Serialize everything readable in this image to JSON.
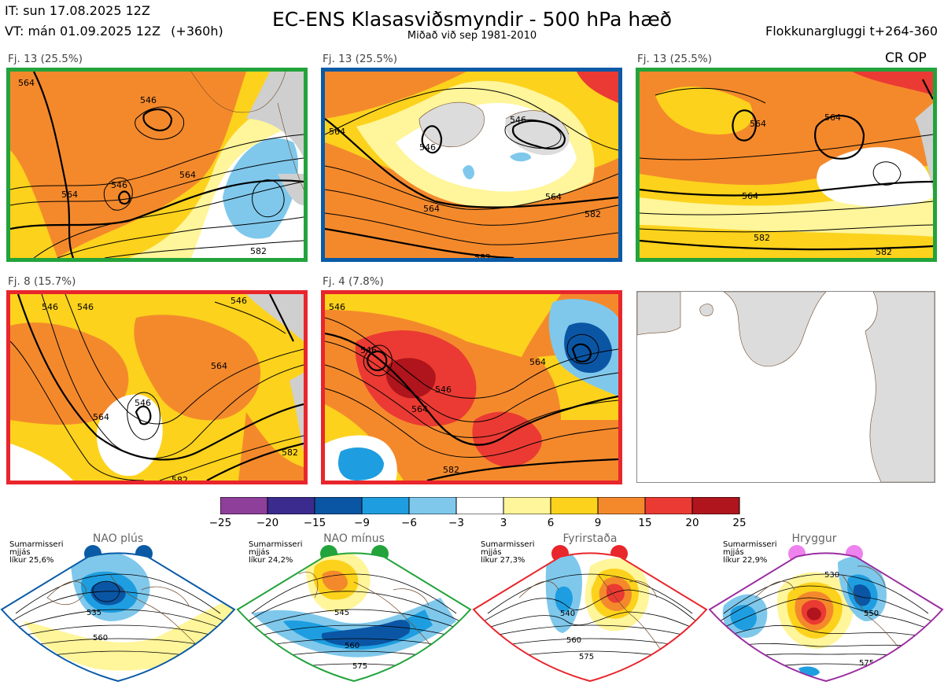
{
  "header": {
    "it": "IT: sun 17.08.2025 12Z",
    "vt": "VT: mán 01.09.2025 12Z",
    "vt_offset": "(+360h)",
    "title": "EC-ENS Klasasviðsmyndir - 500 hPa hæð",
    "subtitle": "Miðað við sep 1981-2010",
    "window": "Flokkunargluggi t+264-360",
    "cr_op": "CR OP"
  },
  "panels": [
    {
      "label": "Fj. 13 (25.5%)",
      "border": "#22a33b",
      "contours": [
        "564",
        "546",
        "546",
        "564",
        "564",
        "582"
      ]
    },
    {
      "label": "Fj. 13 (25.5%)",
      "border": "#0a5aa6",
      "contours": [
        "546",
        "546",
        "564",
        "564",
        "564",
        "582",
        "582"
      ]
    },
    {
      "label": "Fj. 13 (25.5%)",
      "border": "#22a33b",
      "contours": [
        "564",
        "564",
        "564",
        "582",
        "582"
      ]
    },
    {
      "label": "Fj. 8 (15.7%)",
      "border": "#e8262b",
      "contours": [
        "546",
        "546",
        "546",
        "564",
        "564",
        "546",
        "582",
        "582"
      ]
    },
    {
      "label": "Fj. 4 (7.8%)",
      "border": "#e8262b",
      "contours": [
        "546",
        "546",
        "564",
        "546",
        "564",
        "582"
      ]
    },
    {
      "label": "",
      "border": "#888888",
      "contours": []
    }
  ],
  "colorbar": {
    "ticks": [
      "−25",
      "−20",
      "−15",
      "−9",
      "−6",
      "−3",
      "3",
      "6",
      "9",
      "15",
      "20",
      "25"
    ],
    "colors": [
      "#8e3f9a",
      "#3c2b8e",
      "#0b56a4",
      "#1e9ee0",
      "#7fc8ec",
      "#ffffff",
      "#fff59a",
      "#fcd21c",
      "#f4892c",
      "#ea3a33",
      "#b0141c"
    ]
  },
  "regimes": [
    {
      "name": "NAO plús",
      "text": [
        "Sumarmisseri",
        "mjjás",
        "líkur 25,6%"
      ],
      "color": "#0a5aa6",
      "contours": [
        "535",
        "560"
      ]
    },
    {
      "name": "NAO mínus",
      "text": [
        "Sumarmisseri",
        "mjjás",
        "líkur 24,2%"
      ],
      "color": "#22a33b",
      "contours": [
        "545",
        "560",
        "575"
      ]
    },
    {
      "name": "Fyrirstaða",
      "text": [
        "Sumarmisseri",
        "mjjás",
        "líkur 27,3%"
      ],
      "color": "#e8262b",
      "contours": [
        "540",
        "560",
        "575"
      ]
    },
    {
      "name": "Hryggur",
      "text": [
        "Sumarmisseri",
        "mjjás",
        "líkur 22,9%"
      ],
      "color": "#9a2ea0",
      "contours": [
        "530",
        "550",
        "575"
      ]
    }
  ]
}
